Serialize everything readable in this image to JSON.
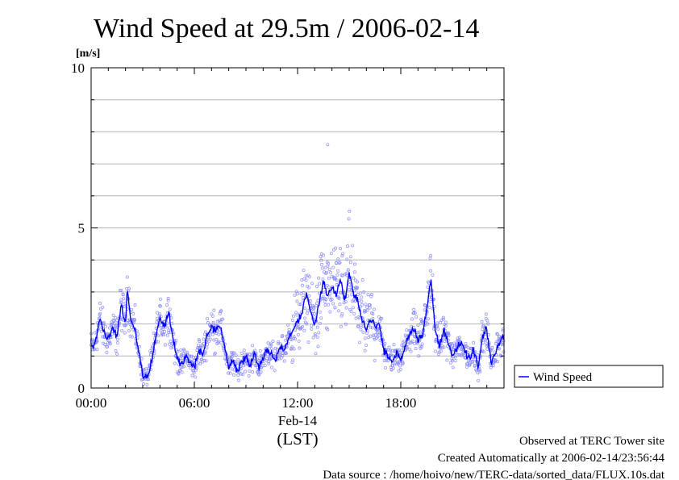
{
  "chart_data": {
    "type": "scatter",
    "title": "Wind Speed at 29.5m / 2006-02-14",
    "ylabel_unit": "[m/s]",
    "x_ticks": [
      "00:00",
      "06:00",
      "12:00",
      "18:00"
    ],
    "x_date_label": "Feb-14",
    "x_zone_label": "(LST)",
    "y_ticks": [
      "0",
      "5",
      "10"
    ],
    "ylim": [
      0,
      10
    ],
    "xlim_hours": [
      0,
      24
    ],
    "grid": true,
    "legend_position": "right-bottom",
    "series": [
      {
        "name": "Wind Speed",
        "color": "#0000ff",
        "marker": "open-circle",
        "line_anchor_points": [
          [
            0.0,
            1.3
          ],
          [
            0.25,
            1.4
          ],
          [
            0.5,
            2.2
          ],
          [
            0.75,
            1.7
          ],
          [
            1.0,
            1.5
          ],
          [
            1.25,
            1.9
          ],
          [
            1.5,
            1.6
          ],
          [
            1.75,
            2.6
          ],
          [
            2.0,
            2.0
          ],
          [
            2.1,
            3.2
          ],
          [
            2.3,
            2.1
          ],
          [
            2.5,
            2.0
          ],
          [
            2.75,
            1.2
          ],
          [
            3.0,
            0.4
          ],
          [
            3.25,
            0.3
          ],
          [
            3.5,
            0.8
          ],
          [
            3.75,
            1.6
          ],
          [
            4.0,
            2.2
          ],
          [
            4.25,
            1.9
          ],
          [
            4.5,
            2.4
          ],
          [
            4.75,
            1.6
          ],
          [
            5.0,
            0.9
          ],
          [
            5.25,
            0.7
          ],
          [
            5.5,
            1.0
          ],
          [
            5.75,
            0.8
          ],
          [
            6.0,
            0.6
          ],
          [
            6.25,
            1.2
          ],
          [
            6.5,
            1.0
          ],
          [
            6.75,
            1.7
          ],
          [
            7.0,
            1.9
          ],
          [
            7.25,
            1.8
          ],
          [
            7.5,
            2.0
          ],
          [
            7.75,
            1.3
          ],
          [
            8.0,
            0.6
          ],
          [
            8.25,
            0.9
          ],
          [
            8.5,
            0.5
          ],
          [
            8.75,
            0.8
          ],
          [
            9.0,
            1.0
          ],
          [
            9.25,
            0.7
          ],
          [
            9.5,
            1.1
          ],
          [
            9.75,
            0.6
          ],
          [
            10.0,
            0.9
          ],
          [
            10.25,
            1.2
          ],
          [
            10.5,
            1.0
          ],
          [
            10.75,
            0.9
          ],
          [
            11.0,
            1.3
          ],
          [
            11.25,
            1.2
          ],
          [
            11.5,
            1.6
          ],
          [
            11.75,
            1.8
          ],
          [
            12.0,
            2.1
          ],
          [
            12.25,
            2.3
          ],
          [
            12.5,
            3.0
          ],
          [
            12.75,
            2.4
          ],
          [
            13.0,
            2.0
          ],
          [
            13.25,
            2.6
          ],
          [
            13.5,
            3.4
          ],
          [
            13.75,
            2.8
          ],
          [
            14.0,
            3.2
          ],
          [
            14.25,
            2.9
          ],
          [
            14.5,
            3.4
          ],
          [
            14.75,
            2.7
          ],
          [
            15.0,
            3.6
          ],
          [
            15.25,
            2.9
          ],
          [
            15.5,
            2.7
          ],
          [
            15.75,
            2.2
          ],
          [
            16.0,
            1.8
          ],
          [
            16.25,
            2.2
          ],
          [
            16.5,
            1.9
          ],
          [
            16.75,
            2.0
          ],
          [
            17.0,
            1.2
          ],
          [
            17.25,
            1.0
          ],
          [
            17.5,
            0.8
          ],
          [
            17.75,
            1.1
          ],
          [
            18.0,
            0.9
          ],
          [
            18.25,
            1.3
          ],
          [
            18.5,
            1.7
          ],
          [
            18.75,
            1.9
          ],
          [
            19.0,
            1.5
          ],
          [
            19.25,
            1.7
          ],
          [
            19.5,
            2.4
          ],
          [
            19.75,
            3.4
          ],
          [
            20.0,
            1.8
          ],
          [
            20.25,
            1.3
          ],
          [
            20.5,
            1.8
          ],
          [
            20.75,
            1.5
          ],
          [
            21.0,
            1.0
          ],
          [
            21.25,
            1.2
          ],
          [
            21.5,
            1.4
          ],
          [
            21.75,
            1.1
          ],
          [
            22.0,
            0.9
          ],
          [
            22.25,
            1.2
          ],
          [
            22.5,
            0.6
          ],
          [
            22.75,
            1.6
          ],
          [
            23.0,
            1.8
          ],
          [
            23.25,
            0.8
          ],
          [
            23.5,
            1.1
          ],
          [
            23.75,
            1.4
          ],
          [
            24.0,
            1.7
          ]
        ],
        "notable_peak": [
          13.75,
          7.6
        ]
      }
    ]
  },
  "footer": {
    "line1": "Observed at TERC Tower site",
    "line2": "Created Automatically at 2006-02-14/23:56:44",
    "line3": "Data source : /home/hoivo/new/TERC-data/sorted_data/FLUX.10s.dat"
  }
}
